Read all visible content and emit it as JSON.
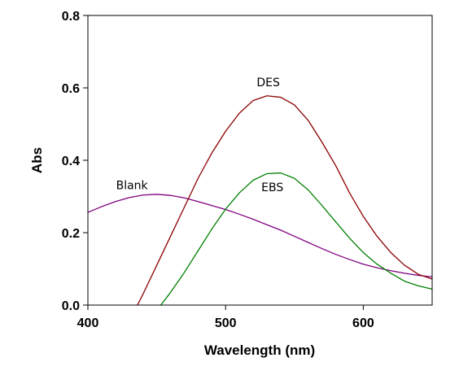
{
  "chart_data": {
    "type": "line",
    "xlabel": "Wavelength (nm)",
    "ylabel": "Abs",
    "xlim": [
      400,
      650
    ],
    "ylim": [
      0.0,
      0.8
    ],
    "xticks": [
      400,
      500,
      600
    ],
    "xtick_labels": [
      "400",
      "500",
      "600"
    ],
    "yticks": [
      0.0,
      0.2,
      0.4,
      0.6,
      0.8
    ],
    "ytick_labels": [
      "0.0",
      "0.2",
      "0.4",
      "0.6",
      "0.8"
    ],
    "grid": false,
    "legend": "none",
    "series": [
      {
        "name": "Blank",
        "color": "#800080",
        "x": [
          400,
          410,
          420,
          430,
          440,
          450,
          460,
          470,
          480,
          490,
          500,
          510,
          520,
          530,
          540,
          550,
          560,
          570,
          580,
          590,
          600,
          610,
          620,
          630,
          640,
          650
        ],
        "y": [
          0.256,
          0.272,
          0.286,
          0.297,
          0.304,
          0.306,
          0.303,
          0.296,
          0.286,
          0.275,
          0.264,
          0.251,
          0.237,
          0.222,
          0.207,
          0.19,
          0.173,
          0.156,
          0.14,
          0.126,
          0.113,
          0.103,
          0.095,
          0.088,
          0.082,
          0.078
        ]
      },
      {
        "name": "DES",
        "color": "#8b0000",
        "x": [
          436,
          440,
          450,
          460,
          470,
          480,
          490,
          500,
          510,
          520,
          530,
          540,
          550,
          560,
          570,
          580,
          590,
          600,
          610,
          620,
          630,
          640,
          650
        ],
        "y": [
          0.0,
          0.03,
          0.11,
          0.19,
          0.27,
          0.35,
          0.42,
          0.48,
          0.53,
          0.565,
          0.578,
          0.574,
          0.553,
          0.51,
          0.45,
          0.385,
          0.31,
          0.245,
          0.19,
          0.145,
          0.11,
          0.085,
          0.072
        ]
      },
      {
        "name": "EBS",
        "color": "#008000",
        "x": [
          453,
          460,
          470,
          480,
          490,
          500,
          510,
          520,
          530,
          540,
          550,
          560,
          570,
          580,
          590,
          600,
          610,
          620,
          630,
          640,
          650
        ],
        "y": [
          0.0,
          0.035,
          0.09,
          0.15,
          0.21,
          0.265,
          0.31,
          0.345,
          0.363,
          0.365,
          0.35,
          0.318,
          0.275,
          0.23,
          0.185,
          0.145,
          0.113,
          0.088,
          0.066,
          0.053,
          0.044
        ]
      }
    ],
    "annotations": [
      {
        "text": "Blank",
        "x": 432,
        "y": 0.32
      },
      {
        "text": "DES",
        "x": 531,
        "y": 0.605
      },
      {
        "text": "EBS",
        "x": 534,
        "y": 0.315
      }
    ]
  }
}
